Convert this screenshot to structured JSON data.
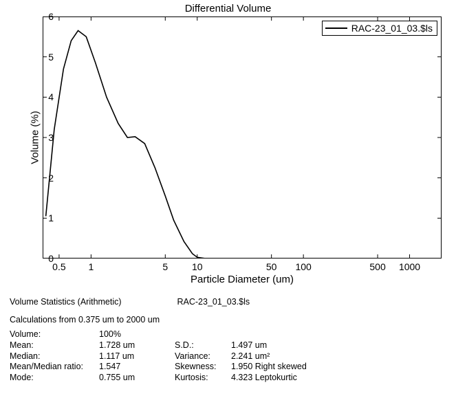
{
  "chart": {
    "type": "line",
    "title": "Differential Volume",
    "title_fontsize": 15,
    "xlabel": "Particle Diameter (um)",
    "ylabel": "Volume (%)",
    "label_fontsize": 15,
    "background_color": "#ffffff",
    "border_color": "#000000",
    "line_color": "#000000",
    "line_width": 1.6,
    "xscale": "log",
    "xlim": [
      0.35,
      2000
    ],
    "ylim": [
      0,
      6
    ],
    "xticks": [
      0.5,
      1,
      5,
      10,
      50,
      100,
      500,
      1000
    ],
    "xtick_labels": [
      "0.5",
      "1",
      "5",
      "10",
      "50",
      "100",
      "500",
      "1000"
    ],
    "yticks": [
      0,
      1,
      2,
      3,
      4,
      5,
      6
    ],
    "ytick_labels": [
      "0",
      "1",
      "2",
      "3",
      "4",
      "5",
      "6"
    ],
    "tick_fontsize": 14,
    "legend": {
      "label": "RAC-23_01_03.$ls",
      "position": "top-right",
      "line_color": "#000000"
    },
    "series": [
      {
        "name": "RAC-23_01_03.$ls",
        "x": [
          0.375,
          0.45,
          0.55,
          0.65,
          0.755,
          0.9,
          1.1,
          1.4,
          1.8,
          2.2,
          2.6,
          3.2,
          4.0,
          5.0,
          6.0,
          7.5,
          9.0,
          10.0,
          12.0,
          2000
        ],
        "y": [
          1.05,
          3.2,
          4.7,
          5.4,
          5.65,
          5.5,
          4.85,
          4.0,
          3.35,
          3.0,
          3.02,
          2.85,
          2.25,
          1.55,
          0.95,
          0.42,
          0.12,
          0.03,
          0.0,
          0.0
        ]
      }
    ]
  },
  "stats": {
    "header_left": "Volume Statistics (Arithmetic)",
    "header_right": "RAC-23_01_03.$ls",
    "calc_note": "Calculations from 0.375 um to 2000 um",
    "rows": [
      {
        "l1": "Volume:",
        "v1": "100%"
      },
      {
        "l1": "Mean:",
        "v1": "1.728 um",
        "l2": "S.D.:",
        "v2": "1.497 um"
      },
      {
        "l1": "Median:",
        "v1": "1.117 um",
        "l2": "Variance:",
        "v2": "2.241 um²"
      },
      {
        "l1": "Mean/Median ratio:",
        "v1": "1.547",
        "l2": "Skewness:",
        "v2": "1.950 Right skewed"
      },
      {
        "l1": "Mode:",
        "v1": "0.755 um",
        "l2": "Kurtosis:",
        "v2": "4.323 Leptokurtic"
      }
    ]
  }
}
